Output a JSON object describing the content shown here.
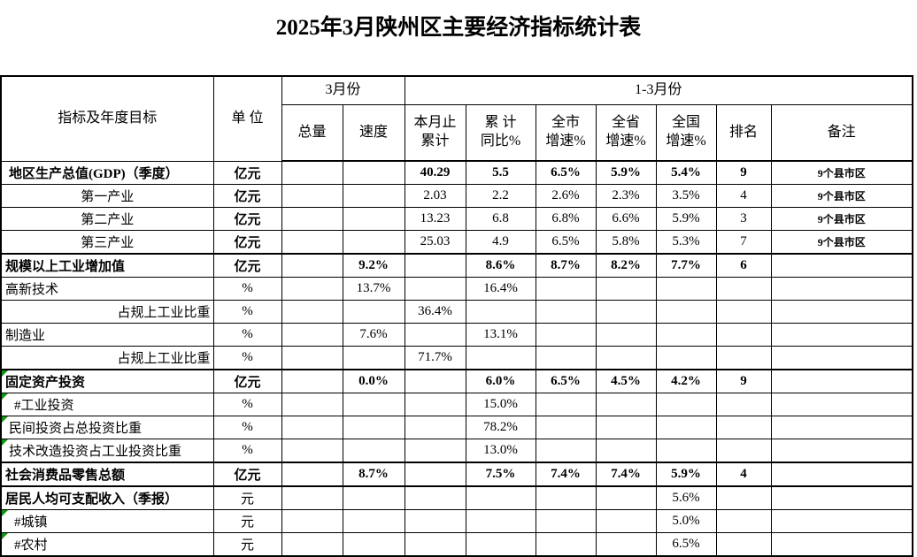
{
  "title": "2025年3月陕州区主要经济指标统计表",
  "colors": {
    "background": "#ffffff",
    "grid": "#000000",
    "text": "#000000",
    "green_triangle": "#149414"
  },
  "table": {
    "header": {
      "indicator": "指标及年度目标",
      "unit": "单 位",
      "march": "3月份",
      "march_sub": [
        "总量",
        "速度"
      ],
      "q1": "1-3月份",
      "q1_sub": [
        "本月止\n累计",
        "累 计\n同比%",
        "全市\n增速%",
        "全省\n增速%",
        "全国\n增速%",
        "排名",
        "备注"
      ]
    },
    "rows": [
      {
        "label": "地区生产总值(GDP)（季度）",
        "unit": "亿元",
        "total": "",
        "speed": "",
        "cum": "40.29",
        "yoy": "5.5",
        "city": "6.5%",
        "prov": "5.9%",
        "nat": "5.4%",
        "rank": "9",
        "note": "9个县市区",
        "bold": true,
        "align": "left",
        "indent": 8
      },
      {
        "label": "第一产业",
        "unit": "亿元",
        "total": "",
        "speed": "",
        "cum": "2.03",
        "yoy": "2.2",
        "city": "2.6%",
        "prov": "2.3%",
        "nat": "3.5%",
        "rank": "4",
        "note": "9个县市区",
        "unitBold": true,
        "align": "center"
      },
      {
        "label": "第二产业",
        "unit": "亿元",
        "total": "",
        "speed": "",
        "cum": "13.23",
        "yoy": "6.8",
        "city": "6.8%",
        "prov": "6.6%",
        "nat": "5.9%",
        "rank": "3",
        "note": "9个县市区",
        "unitBold": true,
        "align": "center"
      },
      {
        "label": "第三产业",
        "unit": "亿元",
        "total": "",
        "speed": "",
        "cum": "25.03",
        "yoy": "4.9",
        "city": "6.5%",
        "prov": "5.8%",
        "nat": "5.3%",
        "rank": "7",
        "note": "9个县市区",
        "unitBold": true,
        "align": "center"
      },
      {
        "label": "规模以上工业增加值",
        "unit": "亿元",
        "total": "",
        "speed": "9.2%",
        "cum": "",
        "yoy": "8.6%",
        "city": "8.7%",
        "prov": "8.2%",
        "nat": "7.7%",
        "rank": "6",
        "note": "",
        "bold": true,
        "thickTop": true,
        "align": "left",
        "indent": 4
      },
      {
        "label": "高新技术",
        "unit": "%",
        "total": "",
        "speed": "13.7%",
        "cum": "",
        "yoy": "16.4%",
        "city": "",
        "prov": "",
        "nat": "",
        "rank": "",
        "note": "",
        "align": "left",
        "indent": 4
      },
      {
        "label": "占规上工业比重",
        "unit": "%",
        "total": "",
        "speed": "",
        "cum": "36.4%",
        "yoy": "",
        "city": "",
        "prov": "",
        "nat": "",
        "rank": "",
        "note": "",
        "align": "right"
      },
      {
        "label": "制造业",
        "unit": "%",
        "total": "",
        "speed": "7.6%",
        "cum": "",
        "yoy": "13.1%",
        "city": "",
        "prov": "",
        "nat": "",
        "rank": "",
        "note": "",
        "align": "left",
        "indent": 4
      },
      {
        "label": "占规上工业比重",
        "unit": "%",
        "total": "",
        "speed": "",
        "cum": "71.7%",
        "yoy": "",
        "city": "",
        "prov": "",
        "nat": "",
        "rank": "",
        "note": "",
        "align": "right"
      },
      {
        "label": "固定资产投资",
        "unit": "亿元",
        "total": "",
        "speed": "0.0%",
        "cum": "",
        "yoy": "6.0%",
        "city": "6.5%",
        "prov": "4.5%",
        "nat": "4.2%",
        "rank": "9",
        "note": "",
        "bold": true,
        "thickTop": true,
        "green": true,
        "align": "left",
        "indent": 4
      },
      {
        "label": "#工业投资",
        "unit": "%",
        "total": "",
        "speed": "",
        "cum": "",
        "yoy": "15.0%",
        "city": "",
        "prov": "",
        "nat": "",
        "rank": "",
        "note": "",
        "green": true,
        "align": "left",
        "indent": 14
      },
      {
        "label": "民间投资占总投资比重",
        "unit": "%",
        "total": "",
        "speed": "",
        "cum": "",
        "yoy": "78.2%",
        "city": "",
        "prov": "",
        "nat": "",
        "rank": "",
        "note": "",
        "green": true,
        "align": "left",
        "indent": 8
      },
      {
        "label": "技术改造投资占工业投资比重",
        "unit": "%",
        "total": "",
        "speed": "",
        "cum": "",
        "yoy": "13.0%",
        "city": "",
        "prov": "",
        "nat": "",
        "rank": "",
        "note": "",
        "green": true,
        "align": "left",
        "indent": 8
      },
      {
        "label": "社会消费品零售总额",
        "unit": "亿元",
        "total": "",
        "speed": "8.7%",
        "cum": "",
        "yoy": "7.5%",
        "city": "7.4%",
        "prov": "7.4%",
        "nat": "5.9%",
        "rank": "4",
        "note": "",
        "bold": true,
        "thickTop": true,
        "align": "left",
        "indent": 4
      },
      {
        "label": "居民人均可支配收入（季报）",
        "unit": "元",
        "total": "",
        "speed": "",
        "cum": "",
        "yoy": "",
        "city": "",
        "prov": "",
        "nat": "5.6%",
        "rank": "",
        "note": "",
        "labelBold": true,
        "thickTop": true,
        "align": "left",
        "indent": 4
      },
      {
        "label": "#城镇",
        "unit": "元",
        "total": "",
        "speed": "",
        "cum": "",
        "yoy": "",
        "city": "",
        "prov": "",
        "nat": "5.0%",
        "rank": "",
        "note": "",
        "green": true,
        "align": "left",
        "indent": 14
      },
      {
        "label": "#农村",
        "unit": "元",
        "total": "",
        "speed": "",
        "cum": "",
        "yoy": "",
        "city": "",
        "prov": "",
        "nat": "6.5%",
        "rank": "",
        "note": "",
        "green": true,
        "align": "left",
        "indent": 14
      }
    ]
  }
}
